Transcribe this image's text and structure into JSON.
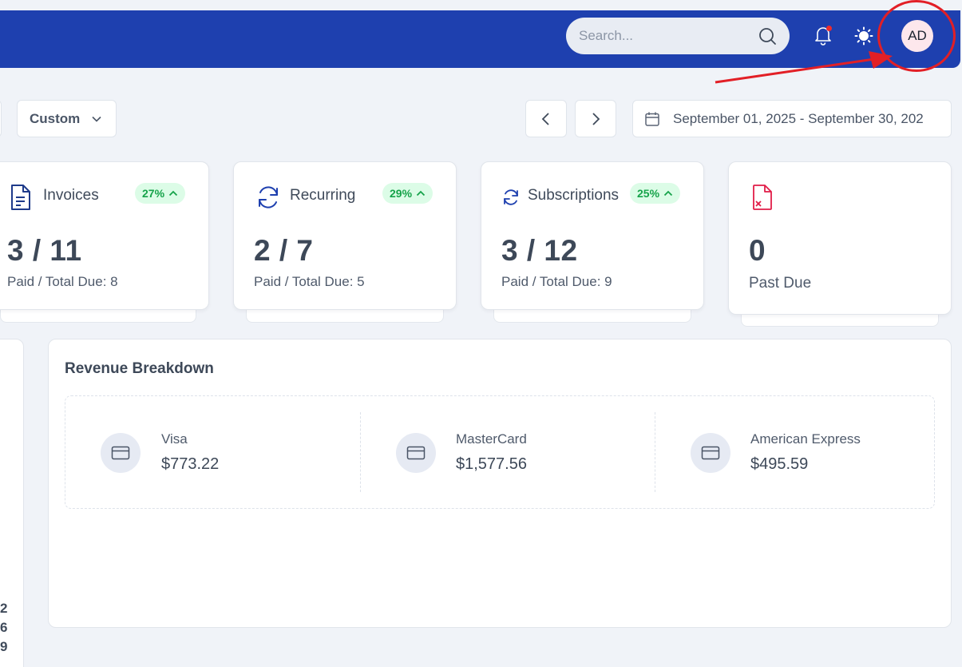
{
  "header": {
    "search": {
      "placeholder": "Search..."
    },
    "avatar_initials": "AD",
    "brand_color": "#1e40af"
  },
  "filters": {
    "period_label": "Custom",
    "date_range": "September 01, 2025 - September 30, 202"
  },
  "stats": [
    {
      "title": "Invoices",
      "change": "27%",
      "value": "3 / 11",
      "sub": "Paid / Total Due: 8",
      "icon": "document-icon"
    },
    {
      "title": "Recurring",
      "change": "29%",
      "value": "2 / 7",
      "sub": "Paid / Total Due: 5",
      "icon": "refresh-icon"
    },
    {
      "title": "Subscriptions",
      "change": "25%",
      "value": "3 / 12",
      "sub": "Paid / Total Due: 9",
      "icon": "sync-icon"
    },
    {
      "title": "",
      "value": "0",
      "sub": "Past Due",
      "icon": "file-x-icon"
    }
  ],
  "left_panel_digits": [
    "2",
    "6",
    "9"
  ],
  "revenue": {
    "title": "Revenue Breakdown",
    "items": [
      {
        "label": "Visa",
        "amount": "$773.22"
      },
      {
        "label": "MasterCard",
        "amount": "$1,577.56"
      },
      {
        "label": "American Express",
        "amount": "$495.59"
      }
    ]
  },
  "colors": {
    "badge_bg": "#dcfce7",
    "badge_text": "#16a34a",
    "annotation": "#e21f26",
    "past_due_icon": "#e11d48"
  }
}
